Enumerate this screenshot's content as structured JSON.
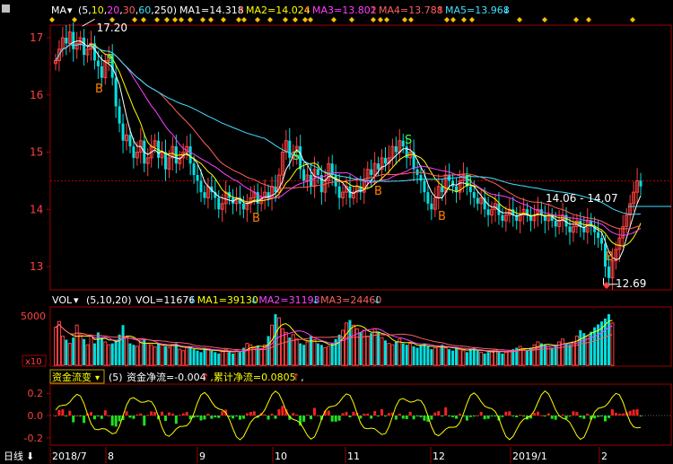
{
  "colors": {
    "bg": "#000000",
    "frame": "#a00000",
    "up": "#ff4040",
    "down": "#00e0e0",
    "ma1": "#ffffff",
    "ma2": "#ffff00",
    "ma3": "#ff40ff",
    "ma4": "#ff6060",
    "ma5": "#40e0ff",
    "ref": "#c00000",
    "flow_pos": "#ff2020",
    "flow_neg": "#20e020",
    "flow_line": "#ffff00"
  },
  "price_panel": {
    "legend": {
      "name": "MA",
      "params_prefix": "(",
      "params": [
        "5",
        "10",
        "20",
        "30",
        "60",
        "250"
      ],
      "params_suffix": ")",
      "items": [
        {
          "label": "MA1=14.318",
          "arrow": "↑",
          "color": "#ffffff",
          "arrow_color": "#ff4040"
        },
        {
          "label": "MA2=14.024",
          "arrow": "↑",
          "color": "#ffff00",
          "arrow_color": "#ff4040"
        },
        {
          "label": "MA3=13.802",
          "arrow": "↑",
          "color": "#ff40ff",
          "arrow_color": "#ff4040"
        },
        {
          "label": "MA4=13.788",
          "arrow": "↑",
          "color": "#ff6060",
          "arrow_color": "#ff4040"
        },
        {
          "label": "MA5=13.968",
          "arrow": "↓",
          "color": "#40e0ff",
          "arrow_color": "#40e0ff"
        }
      ]
    },
    "y_ticks": [
      "17",
      "16",
      "15",
      "14",
      "13"
    ],
    "high_label": "17.20",
    "low_label": "12.69",
    "range_label": "14.06 - 14.07",
    "buy_mark": "B",
    "sell_mark": "S"
  },
  "volume_panel": {
    "legend": {
      "name": "VOL",
      "params": "(5,10,20)",
      "items": [
        {
          "label": "VOL=11676",
          "arrow": "↓",
          "color": "#ffffff",
          "arrow_color": "#40e0ff"
        },
        {
          "label": "MA1=39130",
          "arrow": "↓",
          "color": "#ffff00",
          "arrow_color": "#40e0ff"
        },
        {
          "label": "MA2=31193",
          "arrow": "↓",
          "color": "#ff40ff",
          "arrow_color": "#40e0ff"
        },
        {
          "label": "MA3=24460",
          "arrow": "↓",
          "color": "#ff6060",
          "arrow_color": "#40e0ff"
        }
      ]
    },
    "y_tick": "5000",
    "unit": "x10"
  },
  "flow_panel": {
    "legend": {
      "name": "资金流变",
      "params": "(5)",
      "items": [
        {
          "label": "资金净流=-0.004",
          "arrow": "↑",
          "color": "#ffffff",
          "arrow_color": "#ff4040"
        },
        {
          "label": ",累计净流=0.0805",
          "arrow": "↑",
          "color": "#ffff00",
          "arrow_color": "#ff4040"
        },
        {
          "label": ",",
          "arrow": "",
          "color": "#ffffff",
          "arrow_color": "#ffffff"
        }
      ]
    },
    "y_ticks": [
      "0.2",
      "0.0",
      "-0.2"
    ]
  },
  "bottom_bar": {
    "period": "日线",
    "period_arrow": "⬇",
    "x_labels": [
      "2018/7",
      "8",
      "9",
      "10",
      "11",
      "12",
      "2019/1",
      "2"
    ]
  },
  "chart_data": {
    "type": "candlestick",
    "y_range": [
      12.55,
      17.2
    ],
    "high": 17.2,
    "low": 12.69,
    "ref_price": 14.5,
    "x_labels": [
      "2018/7",
      "8",
      "9",
      "10",
      "11",
      "12",
      "2019/1",
      "2"
    ],
    "close_series": [
      16.6,
      16.8,
      17.0,
      16.9,
      17.1,
      16.8,
      16.9,
      17.0,
      16.7,
      16.8,
      16.9,
      16.6,
      16.5,
      16.3,
      16.6,
      16.7,
      16.3,
      15.8,
      15.5,
      15.2,
      15.3,
      15.1,
      14.9,
      15.0,
      15.2,
      14.8,
      14.9,
      15.1,
      15.2,
      14.9,
      15.0,
      14.7,
      14.9,
      15.1,
      14.8,
      14.9,
      15.0,
      15.1,
      14.8,
      14.6,
      14.5,
      14.3,
      14.2,
      14.4,
      14.3,
      14.2,
      14.0,
      14.1,
      14.3,
      14.2,
      14.1,
      14.2,
      14.1,
      14.0,
      14.1,
      14.2,
      14.3,
      14.1,
      14.2,
      14.3,
      14.2,
      14.4,
      14.3,
      14.6,
      15.0,
      15.2,
      14.9,
      15.0,
      15.1,
      14.7,
      14.5,
      14.6,
      14.4,
      14.7,
      14.6,
      14.3,
      14.5,
      14.8,
      14.6,
      14.4,
      14.2,
      14.3,
      14.4,
      14.2,
      14.3,
      14.4,
      14.3,
      14.5,
      14.7,
      14.6,
      14.8,
      14.7,
      14.9,
      14.8,
      14.9,
      15.1,
      15.0,
      15.2,
      15.1,
      14.9,
      15.0,
      14.7,
      14.6,
      14.5,
      14.3,
      14.1,
      14.0,
      14.2,
      14.4,
      14.3,
      14.6,
      14.5,
      14.4,
      14.3,
      14.5,
      14.6,
      14.4,
      14.3,
      14.2,
      14.1,
      14.2,
      14.0,
      13.9,
      14.0,
      14.1,
      13.9,
      13.8,
      13.9,
      14.0,
      13.9,
      13.8,
      13.9,
      14.0,
      13.9,
      13.8,
      13.9,
      14.0,
      13.9,
      13.8,
      13.9,
      13.8,
      13.7,
      13.8,
      13.9,
      13.7,
      13.6,
      13.7,
      13.8,
      13.7,
      13.6,
      13.8,
      13.7,
      13.6,
      13.5,
      13.4,
      13.0,
      12.8,
      13.1,
      13.3,
      13.5,
      13.7,
      13.9,
      14.1,
      14.3,
      14.5,
      14.4
    ],
    "volume": [
      52,
      60,
      40,
      35,
      30,
      38,
      55,
      42,
      36,
      28,
      40,
      30,
      45,
      38,
      32,
      28,
      30,
      35,
      42,
      55,
      38,
      30,
      28,
      26,
      32,
      35,
      30,
      28,
      25,
      30,
      28,
      26,
      24,
      28,
      30,
      22,
      20,
      24,
      26,
      22,
      20,
      18,
      24,
      22,
      20,
      18,
      16,
      20,
      22,
      18,
      16,
      20,
      18,
      24,
      30,
      28,
      24,
      26,
      22,
      28,
      40,
      55,
      70,
      65,
      50,
      45,
      38,
      42,
      36,
      30,
      28,
      32,
      40,
      35,
      30,
      28,
      24,
      26,
      30,
      36,
      42,
      48,
      58,
      62,
      55,
      50,
      45,
      48,
      40,
      44,
      50,
      46,
      38,
      34,
      30,
      28,
      32,
      36,
      30,
      28,
      30,
      26,
      24,
      28,
      30,
      26,
      22,
      24,
      26,
      28,
      24,
      22,
      20,
      24,
      22,
      20,
      18,
      22,
      24,
      20,
      18,
      16,
      18,
      20,
      22,
      18,
      16,
      18,
      20,
      22,
      24,
      26,
      22,
      20,
      24,
      28,
      32,
      30,
      28,
      26,
      24,
      28,
      32,
      36,
      30,
      28,
      32,
      40,
      48,
      44,
      40,
      46,
      52,
      56,
      60,
      64,
      70,
      58
    ],
    "volume_y_tick": 5000,
    "volume_unit": "x10",
    "flow_y_range": [
      -0.25,
      0.25
    ],
    "flow_y_ticks": [
      0.2,
      0.0,
      -0.2
    ]
  }
}
